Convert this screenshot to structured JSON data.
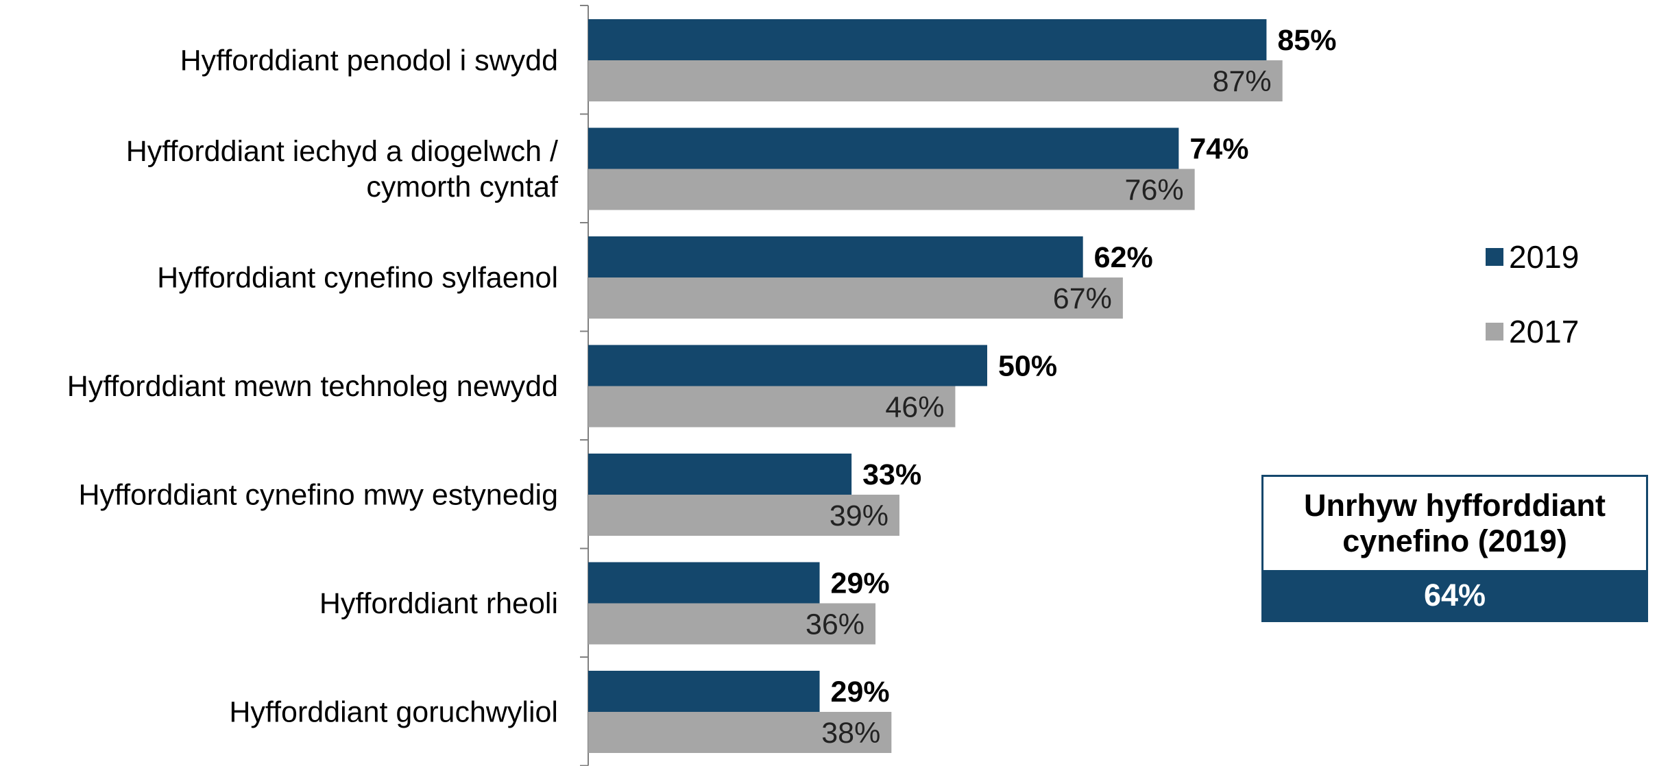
{
  "chart_data": {
    "type": "bar",
    "orientation": "horizontal",
    "categories": [
      [
        "Hyfforddiant penodol i swydd"
      ],
      [
        "Hyfforddiant iechyd a diogelwch /",
        "cymorth cyntaf"
      ],
      [
        "Hyfforddiant cynefino sylfaenol"
      ],
      [
        "Hyfforddiant mewn technoleg newydd"
      ],
      [
        "Hyfforddiant cynefino mwy estynedig"
      ],
      [
        "Hyfforddiant rheoli"
      ],
      [
        "Hyfforddiant goruchwyliol"
      ]
    ],
    "series": [
      {
        "name": "2019",
        "color": "#14476c",
        "values": [
          85,
          74,
          62,
          50,
          33,
          29,
          29
        ],
        "labels": [
          "85%",
          "74%",
          "62%",
          "50%",
          "33%",
          "29%",
          "29%"
        ]
      },
      {
        "name": "2017",
        "color": "#a6a6a6",
        "values": [
          87,
          76,
          67,
          46,
          39,
          36,
          38
        ],
        "labels": [
          "87%",
          "76%",
          "67%",
          "46%",
          "39%",
          "36%",
          "38%"
        ]
      }
    ],
    "xlim": [
      0,
      100
    ],
    "legend_position": "right",
    "grid": false
  },
  "summary": {
    "title": "Unrhyw hyfforddiant cynefino (2019)",
    "value": "64%"
  }
}
